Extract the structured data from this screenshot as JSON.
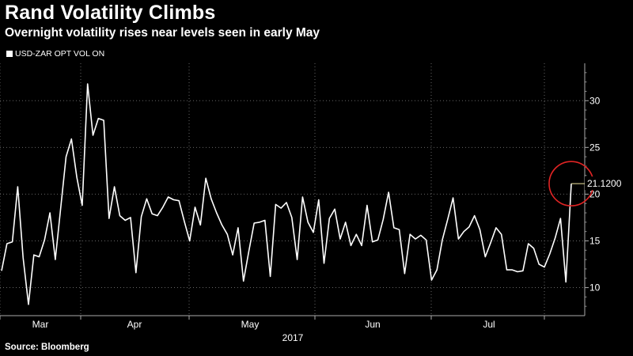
{
  "title": "Rand Volatility Climbs",
  "subtitle": "Overnight volatility rises near levels seen in early May",
  "legend": {
    "label": "USD-ZAR OPT VOL ON"
  },
  "source": "Source: Bloomberg",
  "colors": {
    "background": "#000000",
    "line": "#ffffff",
    "grid": "#666666",
    "highlight": "#e02424",
    "last_value_line": "#f1e7a0"
  },
  "chart_data": {
    "type": "line",
    "x_labels": [
      "Mar",
      "Apr",
      "May",
      "Jun",
      "Jul"
    ],
    "year_label": "2017",
    "y_ticks": [
      10,
      15,
      20,
      25,
      30
    ],
    "ylim": [
      7,
      34
    ],
    "grid": true,
    "last_value_label": "21.1200",
    "series": [
      {
        "name": "USD-ZAR OPT VOL ON",
        "values": [
          11.8,
          14.7,
          14.9,
          20.8,
          13.2,
          8.2,
          13.5,
          13.3,
          15.1,
          18.0,
          13.0,
          18.5,
          24.0,
          25.9,
          21.8,
          18.8,
          31.8,
          26.3,
          28.1,
          27.9,
          17.4,
          20.8,
          17.7,
          17.2,
          17.5,
          11.6,
          17.6,
          19.5,
          17.9,
          17.7,
          18.6,
          19.7,
          19.4,
          19.3,
          17.1,
          15.0,
          18.6,
          16.7,
          21.7,
          19.5,
          18.0,
          16.7,
          15.7,
          13.5,
          16.4,
          10.7,
          13.9,
          16.9,
          17.0,
          17.2,
          11.2,
          18.9,
          18.5,
          19.1,
          17.5,
          13.0,
          19.7,
          17.0,
          15.9,
          19.4,
          12.6,
          17.4,
          18.4,
          15.2,
          17.0,
          14.5,
          15.7,
          14.5,
          18.8,
          14.9,
          15.1,
          17.3,
          20.2,
          16.4,
          16.2,
          11.5,
          15.7,
          15.2,
          15.6,
          15.1,
          10.8,
          11.9,
          15.1,
          17.3,
          19.6,
          15.2,
          16.0,
          16.5,
          17.7,
          16.2,
          13.3,
          14.8,
          16.4,
          15.7,
          11.9,
          11.9,
          11.7,
          11.8,
          14.7,
          14.2,
          12.5,
          12.2,
          13.6,
          15.3,
          17.4,
          10.6,
          21.12
        ]
      }
    ]
  }
}
